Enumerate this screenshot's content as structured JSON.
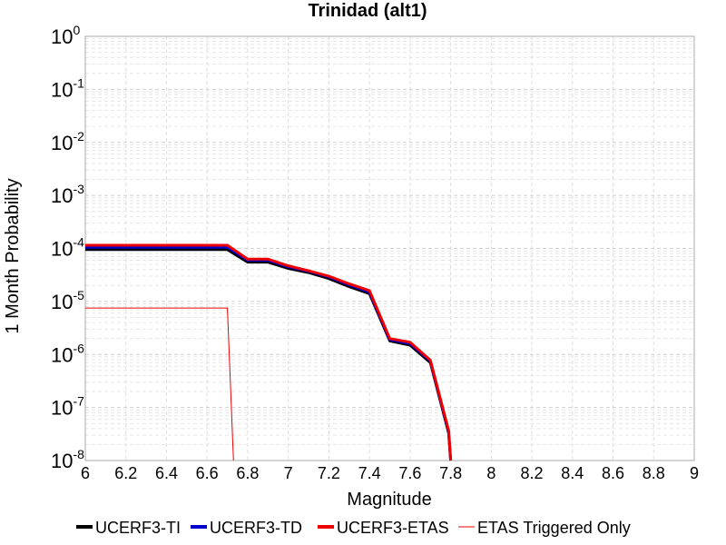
{
  "chart_data": {
    "type": "line",
    "title": "Trinidad (alt1)",
    "xlabel": "Magnitude",
    "ylabel": "1 Month Probability",
    "xlim": [
      6,
      9
    ],
    "ylim": [
      1e-08,
      1
    ],
    "yscale": "log",
    "grid": true,
    "legend_position": "bottom",
    "xticks": [
      "6",
      "6.2",
      "6.4",
      "6.6",
      "6.8",
      "7",
      "7.2",
      "7.4",
      "7.6",
      "7.8",
      "8",
      "8.2",
      "8.4",
      "8.6",
      "8.8",
      "9"
    ],
    "yticks": [
      {
        "base": "10",
        "exp": "0",
        "value": 1
      },
      {
        "base": "10",
        "exp": "-1",
        "value": 0.1
      },
      {
        "base": "10",
        "exp": "-2",
        "value": 0.01
      },
      {
        "base": "10",
        "exp": "-3",
        "value": 0.001
      },
      {
        "base": "10",
        "exp": "-4",
        "value": 0.0001
      },
      {
        "base": "10",
        "exp": "-5",
        "value": 1e-05
      },
      {
        "base": "10",
        "exp": "-6",
        "value": 1e-06
      },
      {
        "base": "10",
        "exp": "-7",
        "value": 1e-07
      },
      {
        "base": "10",
        "exp": "-8",
        "value": 1e-08
      }
    ],
    "series": [
      {
        "name": "UCERF3-TI",
        "color": "#000000",
        "width": 3,
        "x": [
          6.0,
          6.7,
          6.8,
          6.9,
          7.0,
          7.1,
          7.2,
          7.3,
          7.4,
          7.5,
          7.6,
          7.7,
          7.79,
          7.8
        ],
        "y": [
          9.5e-05,
          9.5e-05,
          5.5e-05,
          5.5e-05,
          4.2e-05,
          3.5e-05,
          2.7e-05,
          1.9e-05,
          1.4e-05,
          1.8e-06,
          1.5e-06,
          7e-07,
          3.3e-08,
          1e-08
        ]
      },
      {
        "name": "UCERF3-TD",
        "color": "#0000cc",
        "width": 3,
        "x": [
          6.0,
          6.7,
          6.8,
          6.9,
          7.0,
          7.1,
          7.2,
          7.3,
          7.4,
          7.5,
          7.6,
          7.7,
          7.79,
          7.8
        ],
        "y": [
          0.000105,
          0.000105,
          6e-05,
          6e-05,
          4.5e-05,
          3.7e-05,
          2.9e-05,
          2.05e-05,
          1.5e-05,
          1.9e-06,
          1.6e-06,
          7.5e-07,
          3.5e-08,
          1e-08
        ]
      },
      {
        "name": "UCERF3-ETAS",
        "color": "#ee0000",
        "width": 3,
        "x": [
          6.0,
          6.7,
          6.8,
          6.9,
          7.0,
          7.1,
          7.2,
          7.3,
          7.4,
          7.5,
          7.6,
          7.7,
          7.79,
          7.8
        ],
        "y": [
          0.000115,
          0.000115,
          6.3e-05,
          6.3e-05,
          4.7e-05,
          3.8e-05,
          3e-05,
          2.15e-05,
          1.6e-05,
          2e-06,
          1.7e-06,
          7.8e-07,
          3.7e-08,
          1e-08
        ]
      },
      {
        "name": "ETAS Triggered Only",
        "color": "#ee0000",
        "width": 1,
        "x": [
          6.0,
          6.7,
          6.73
        ],
        "y": [
          7.5e-06,
          7.5e-06,
          1e-08
        ]
      }
    ]
  }
}
